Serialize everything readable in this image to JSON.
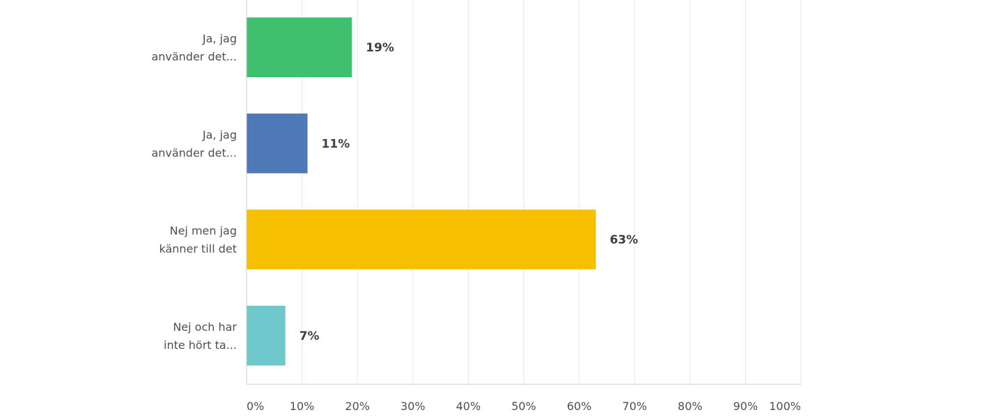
{
  "chart_data": {
    "type": "bar",
    "orientation": "horizontal",
    "categories": [
      [
        "Ja, jag",
        "använder det..."
      ],
      [
        "Ja, jag",
        "använder det..."
      ],
      [
        "Nej men jag",
        "känner till det"
      ],
      [
        "Nej och har",
        "inte hört ta..."
      ]
    ],
    "values": [
      19,
      11,
      63,
      7
    ],
    "data_labels": [
      "19%",
      "11%",
      "63%",
      "7%"
    ],
    "colors": [
      "#40bf6f",
      "#4d7ab6",
      "#f6bf00",
      "#6ec8cc"
    ],
    "xlim": [
      0,
      100
    ],
    "x_ticks": [
      0,
      10,
      20,
      30,
      40,
      50,
      60,
      70,
      80,
      90,
      100
    ],
    "x_tick_labels": [
      "0%",
      "10%",
      "20%",
      "30%",
      "40%",
      "50%",
      "60%",
      "70%",
      "80%",
      "90%",
      "100%"
    ],
    "grid": true,
    "legend": "none",
    "title": "",
    "xlabel": "",
    "ylabel": ""
  }
}
